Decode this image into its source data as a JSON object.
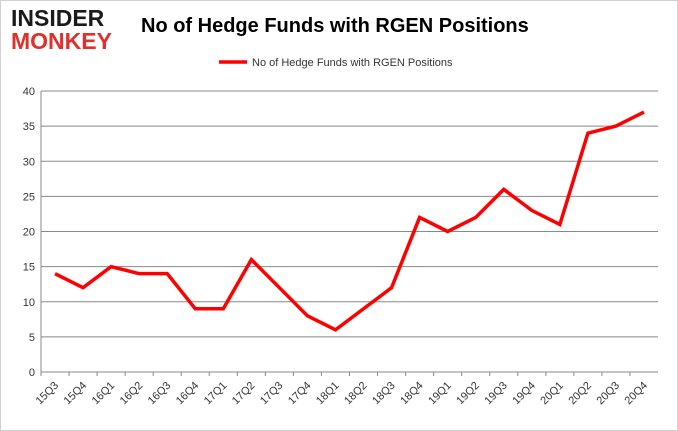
{
  "logo": {
    "line1": "INSIDER",
    "line2": "MONKEY"
  },
  "chart_data": {
    "type": "line",
    "title": "No of Hedge Funds with RGEN Positions",
    "xlabel": "",
    "ylabel": "",
    "categories": [
      "15Q3",
      "15Q4",
      "16Q1",
      "16Q2",
      "16Q3",
      "16Q4",
      "17Q1",
      "17Q2",
      "17Q3",
      "17Q4",
      "18Q1",
      "18Q2",
      "18Q3",
      "18Q4",
      "19Q1",
      "19Q2",
      "19Q3",
      "19Q4",
      "20Q1",
      "20Q2",
      "20Q3",
      "20Q4"
    ],
    "series": [
      {
        "name": "No of Hedge Funds with RGEN Positions",
        "color": "#ff0000",
        "values": [
          14,
          12,
          15,
          14,
          14,
          9,
          9,
          16,
          12,
          8,
          6,
          9,
          12,
          22,
          20,
          22,
          26,
          23,
          21,
          34,
          35,
          37
        ]
      }
    ],
    "ylim": [
      0,
      40
    ],
    "yticks": [
      0,
      5,
      10,
      15,
      20,
      25,
      30,
      35,
      40
    ],
    "grid": true,
    "legend": "top-center"
  }
}
